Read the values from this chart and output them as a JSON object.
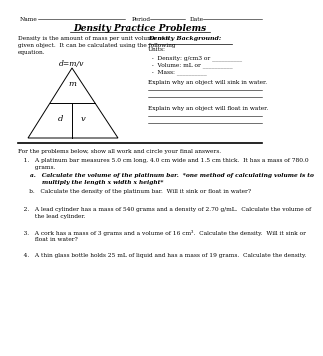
{
  "title": "Density Practice Problems",
  "bg_color": "#ffffff",
  "intro_text": "Density is the amount of mass per unit volume of a\ngiven object.  It can be calculated using the following\nequation.",
  "formula": "d=m/v",
  "density_bg_title": "Density Background:",
  "units_label": "Units:",
  "bullet1": "  -  Density: g/cm3 or __________",
  "bullet2": "  -  Volume: mL or __________",
  "bullet3": "  -  Mass: __________",
  "explain_sink": "Explain why an object will sink in water.",
  "explain_float": "Explain why an object will float in water.",
  "triangle_m": "m",
  "triangle_d": "d",
  "triangle_v": "v",
  "problems_intro": "For the problems below, show all work and circle your final answers.",
  "p1": "   1.   A platinum bar measures 5.0 cm long, 4.0 cm wide and 1.5 cm thick.  It has a mass of 780.0",
  "p1b": "         grams.",
  "p1a_text": "      a.   Calculate the volume of the platinum bar.  *one method of calculating volume is to",
  "p1a_text2": "            multiply the length x width x height*",
  "p1b_text": "      b.   Calculate the density of the platinum bar.  Will it sink or float in water?",
  "p2": "   2.   A lead cylinder has a mass of 540 grams and a density of 2.70 g/mL.  Calculate the volume of",
  "p2b": "         the lead cylinder.",
  "p3": "   3.   A cork has a mass of 3 grams and a volume of 16 cm³.  Calculate the density.  Will it sink or",
  "p3b": "         float in water?",
  "p4": "   4.   A thin glass bottle holds 25 mL of liquid and has a mass of 19 grams.  Calculate the density.",
  "name_text": "Name",
  "period_text": "Period",
  "date_text": "Date"
}
